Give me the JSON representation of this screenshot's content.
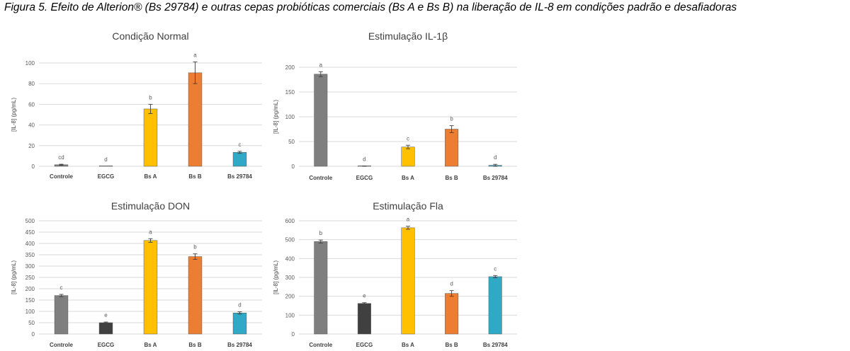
{
  "caption": "Figura 5. Efeito de Alterion® (Bs 29784) e outras cepas probióticas comerciais (Bs A e Bs B) na liberação de IL-8 em condições padrão e desafiadoras",
  "colors": {
    "Controle": "#7f7f7f",
    "EGCG": "#404040",
    "Bs A": "#ffc000",
    "Bs B": "#ed7d31",
    "Bs 29784": "#2fa9c5",
    "grid": "#d9d9d9",
    "error_bar": "#404040"
  },
  "chart_data": [
    {
      "type": "bar",
      "title": "Condição Normal",
      "ylabel": "[IL-8] (pg/mL)",
      "categories": [
        "Controle",
        "EGCG",
        "Bs A",
        "Bs B",
        "Bs 29784"
      ],
      "values": [
        1.5,
        0,
        55.5,
        90.5,
        13.5
      ],
      "errors": [
        0.5,
        0,
        4.5,
        10.5,
        1
      ],
      "significance": [
        "cd",
        "d",
        "b",
        "a",
        "c"
      ],
      "ylim": [
        0,
        100
      ],
      "yticks": [
        0,
        20,
        40,
        60,
        80,
        100
      ],
      "grid": true
    },
    {
      "type": "bar",
      "title": "Estimulação IL-1β",
      "ylabel": "[IL-8] (pg/mL)",
      "categories": [
        "Controle",
        "EGCG",
        "Bs A",
        "Bs B",
        "Bs 29784"
      ],
      "values": [
        186,
        0.5,
        39,
        75,
        2
      ],
      "errors": [
        5,
        0.3,
        3.5,
        7,
        2
      ],
      "significance": [
        "a",
        "d",
        "c",
        "b",
        "d"
      ],
      "ylim": [
        0,
        200
      ],
      "yticks": [
        0,
        50,
        100,
        150,
        200
      ],
      "grid": true
    },
    {
      "type": "bar",
      "title": "Estimulação DON",
      "ylabel": "[IL-8] (pg/mL)",
      "categories": [
        "Controle",
        "EGCG",
        "Bs A",
        "Bs B",
        "Bs 29784"
      ],
      "values": [
        170,
        50,
        413,
        342,
        93
      ],
      "errors": [
        5,
        3,
        8,
        12,
        5
      ],
      "significance": [
        "c",
        "e",
        "a",
        "b",
        "d"
      ],
      "ylim": [
        0,
        500
      ],
      "yticks": [
        0,
        50,
        100,
        150,
        200,
        250,
        300,
        350,
        400,
        450,
        500
      ],
      "grid": true
    },
    {
      "type": "bar",
      "title": "Estimulação Fla",
      "ylabel": "[IL-8] (pg/mL)",
      "categories": [
        "Controle",
        "EGCG",
        "Bs A",
        "Bs B",
        "Bs 29784"
      ],
      "values": [
        490,
        162,
        563,
        215,
        304
      ],
      "errors": [
        8,
        4,
        8,
        15,
        6
      ],
      "significance": [
        "b",
        "e",
        "a",
        "d",
        "c"
      ],
      "ylim": [
        0,
        600
      ],
      "yticks": [
        0,
        100,
        200,
        300,
        400,
        500,
        600
      ],
      "grid": true
    }
  ]
}
